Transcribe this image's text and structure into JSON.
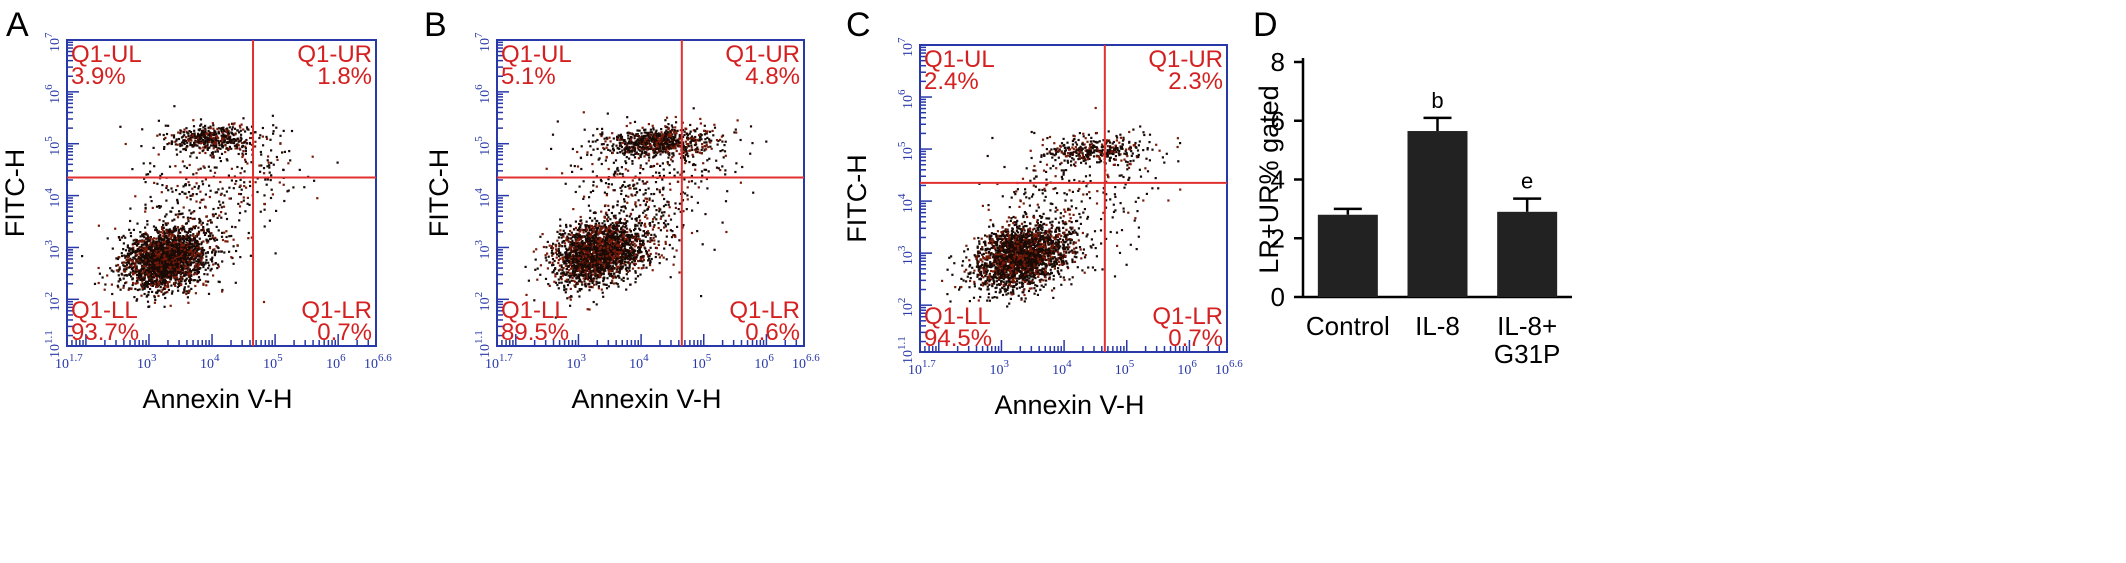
{
  "chart_data": [
    {
      "type": "scatter",
      "panel": "A",
      "xlabel": "Annexin V-H",
      "ylabel": "FITC-H",
      "xlim": [
        1.7,
        6.6
      ],
      "ylim": [
        1.1,
        7
      ],
      "x_scale": "log10",
      "y_scale": "log10",
      "x_ticks": [
        {
          "base": "10",
          "exp": "1.7",
          "value": 1.7
        },
        {
          "base": "10",
          "exp": "3",
          "value": 3
        },
        {
          "base": "10",
          "exp": "4",
          "value": 4
        },
        {
          "base": "10",
          "exp": "5",
          "value": 5
        },
        {
          "base": "10",
          "exp": "6",
          "value": 6
        },
        {
          "base": "10",
          "exp": "6.6",
          "value": 6.6
        }
      ],
      "y_ticks": [
        {
          "base": "10",
          "exp": "1.1",
          "value": 1.1
        },
        {
          "base": "10",
          "exp": "2",
          "value": 2
        },
        {
          "base": "10",
          "exp": "3",
          "value": 3
        },
        {
          "base": "10",
          "exp": "4",
          "value": 4
        },
        {
          "base": "10",
          "exp": "5",
          "value": 5
        },
        {
          "base": "10",
          "exp": "6",
          "value": 6
        },
        {
          "base": "10",
          "exp": "7",
          "value": 7
        }
      ],
      "gate": {
        "x": 4.65,
        "y": 4.35
      },
      "quadrants": [
        {
          "name": "Q1-UL",
          "value": "3.9%",
          "pos": "UL"
        },
        {
          "name": "Q1-UR",
          "value": "1.8%",
          "pos": "UR"
        },
        {
          "name": "Q1-LL",
          "value": "93.7%",
          "pos": "LL"
        },
        {
          "name": "Q1-LR",
          "value": "0.7%",
          "pos": "LR"
        }
      ],
      "clusters": [
        {
          "cx": 3.25,
          "cy": 2.8,
          "sx": 0.35,
          "sy": 0.28,
          "rot": 0.55,
          "n": 2300
        },
        {
          "cx": 4.0,
          "cy": 5.1,
          "sx": 0.32,
          "sy": 0.14,
          "rot": 0.05,
          "n": 420
        },
        {
          "cx": 3.8,
          "cy": 3.9,
          "sx": 0.45,
          "sy": 0.65,
          "rot": 0.7,
          "n": 260
        },
        {
          "cx": 4.6,
          "cy": 4.6,
          "sx": 0.5,
          "sy": 0.45,
          "rot": 0.3,
          "n": 120
        }
      ]
    },
    {
      "type": "scatter",
      "panel": "B",
      "xlabel": "Annexin V-H",
      "ylabel": "FITC-H",
      "xlim": [
        1.7,
        6.6
      ],
      "ylim": [
        1.1,
        7
      ],
      "x_scale": "log10",
      "y_scale": "log10",
      "x_ticks": [
        {
          "base": "10",
          "exp": "1.7",
          "value": 1.7
        },
        {
          "base": "10",
          "exp": "3",
          "value": 3
        },
        {
          "base": "10",
          "exp": "4",
          "value": 4
        },
        {
          "base": "10",
          "exp": "5",
          "value": 5
        },
        {
          "base": "10",
          "exp": "6",
          "value": 6
        },
        {
          "base": "10",
          "exp": "6.6",
          "value": 6.6
        }
      ],
      "y_ticks": [
        {
          "base": "10",
          "exp": "1.1",
          "value": 1.1
        },
        {
          "base": "10",
          "exp": "2",
          "value": 2
        },
        {
          "base": "10",
          "exp": "3",
          "value": 3
        },
        {
          "base": "10",
          "exp": "4",
          "value": 4
        },
        {
          "base": "10",
          "exp": "5",
          "value": 5
        },
        {
          "base": "10",
          "exp": "6",
          "value": 6
        },
        {
          "base": "10",
          "exp": "7",
          "value": 7
        }
      ],
      "gate": {
        "x": 4.65,
        "y": 4.35
      },
      "quadrants": [
        {
          "name": "Q1-UL",
          "value": "5.1%",
          "pos": "UL"
        },
        {
          "name": "Q1-UR",
          "value": "4.8%",
          "pos": "UR"
        },
        {
          "name": "Q1-LL",
          "value": "89.5%",
          "pos": "LL"
        },
        {
          "name": "Q1-LR",
          "value": "0.6%",
          "pos": "LR"
        }
      ],
      "clusters": [
        {
          "cx": 3.3,
          "cy": 2.9,
          "sx": 0.38,
          "sy": 0.28,
          "rot": 0.55,
          "n": 2200
        },
        {
          "cx": 4.3,
          "cy": 5.05,
          "sx": 0.42,
          "sy": 0.14,
          "rot": 0.05,
          "n": 700
        },
        {
          "cx": 3.9,
          "cy": 4.0,
          "sx": 0.45,
          "sy": 0.65,
          "rot": 0.7,
          "n": 320
        },
        {
          "cx": 4.7,
          "cy": 4.6,
          "sx": 0.5,
          "sy": 0.4,
          "rot": 0.3,
          "n": 110
        }
      ]
    },
    {
      "type": "scatter",
      "panel": "C",
      "xlabel": "Annexin V-H",
      "ylabel": "FITC-H",
      "xlim": [
        1.7,
        6.6
      ],
      "ylim": [
        1.1,
        7
      ],
      "x_scale": "log10",
      "y_scale": "log10",
      "x_ticks": [
        {
          "base": "10",
          "exp": "1.7",
          "value": 1.7
        },
        {
          "base": "10",
          "exp": "3",
          "value": 3
        },
        {
          "base": "10",
          "exp": "4",
          "value": 4
        },
        {
          "base": "10",
          "exp": "5",
          "value": 5
        },
        {
          "base": "10",
          "exp": "6",
          "value": 6
        },
        {
          "base": "10",
          "exp": "6.6",
          "value": 6.6
        }
      ],
      "y_ticks": [
        {
          "base": "10",
          "exp": "1.1",
          "value": 1.1
        },
        {
          "base": "10",
          "exp": "2",
          "value": 2
        },
        {
          "base": "10",
          "exp": "3",
          "value": 3
        },
        {
          "base": "10",
          "exp": "4",
          "value": 4
        },
        {
          "base": "10",
          "exp": "5",
          "value": 5
        },
        {
          "base": "10",
          "exp": "6",
          "value": 6
        },
        {
          "base": "10",
          "exp": "7",
          "value": 7
        }
      ],
      "gate": {
        "x": 4.65,
        "y": 4.35
      },
      "quadrants": [
        {
          "name": "Q1-UL",
          "value": "2.4%",
          "pos": "UL"
        },
        {
          "name": "Q1-UR",
          "value": "2.3%",
          "pos": "UR"
        },
        {
          "name": "Q1-LL",
          "value": "94.5%",
          "pos": "LL"
        },
        {
          "name": "Q1-LR",
          "value": "0.7%",
          "pos": "LR"
        }
      ],
      "clusters": [
        {
          "cx": 3.3,
          "cy": 2.95,
          "sx": 0.4,
          "sy": 0.28,
          "rot": 0.55,
          "n": 2300
        },
        {
          "cx": 4.5,
          "cy": 5.0,
          "sx": 0.45,
          "sy": 0.13,
          "rot": 0.05,
          "n": 330
        },
        {
          "cx": 4.0,
          "cy": 4.0,
          "sx": 0.5,
          "sy": 0.65,
          "rot": 0.7,
          "n": 200
        },
        {
          "cx": 4.8,
          "cy": 4.6,
          "sx": 0.5,
          "sy": 0.4,
          "rot": 0.3,
          "n": 80
        }
      ]
    },
    {
      "type": "bar",
      "panel": "D",
      "categories": [
        "Control",
        "IL-8",
        "IL-8+ G31P"
      ],
      "category_lines": [
        [
          "Control"
        ],
        [
          "IL-8"
        ],
        [
          "IL-8+",
          "G31P"
        ]
      ],
      "values": [
        2.8,
        5.65,
        2.9
      ],
      "errors": [
        0.2,
        0.45,
        0.45
      ],
      "annotations": [
        "",
        "b",
        "e"
      ],
      "ylabel": "LR+UR% gated",
      "xlabel": "",
      "ylim": [
        0,
        8
      ],
      "yticks": [
        0,
        2,
        4,
        6,
        8
      ],
      "bar_color": "#222222"
    }
  ],
  "colors": {
    "frame": "#2838a8",
    "gate_line": "#e03030",
    "quadrant_text": "#d42020",
    "dots": "#1a0a05",
    "dots_edge": "#7a1a08"
  }
}
